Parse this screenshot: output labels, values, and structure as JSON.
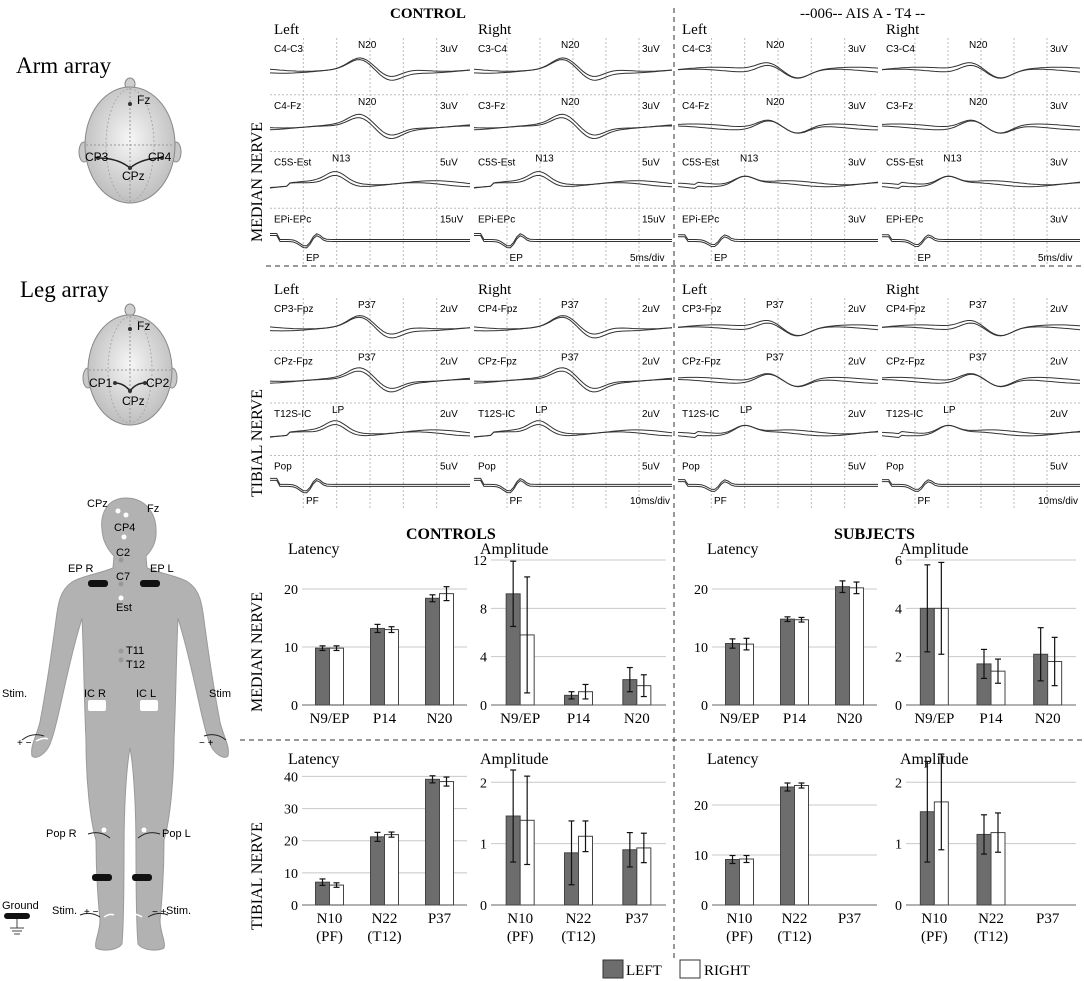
{
  "arrays": {
    "arm_title": "Arm array",
    "leg_title": "Leg array"
  },
  "heads": {
    "arm": {
      "fz": "Fz",
      "left": "CP3",
      "right": "CP4",
      "center": "CPz"
    },
    "leg": {
      "fz": "Fz",
      "left": "CP1",
      "right": "CP2",
      "center": "CPz"
    }
  },
  "body": {
    "labels": [
      "CPz",
      "Fz",
      "CP4",
      "C2",
      "EP R",
      "C7",
      "EP L",
      "Est",
      "T11",
      "T12",
      "IC R",
      "IC L",
      "Stim.",
      "Stim",
      "Pop R",
      "Pop L",
      "Ground",
      "Stim.",
      "Stim."
    ]
  },
  "waves": {
    "headers": {
      "control": "CONTROL",
      "subject": "--006-- AIS A - T4 --"
    },
    "median_label": "MEDIAN NERVE",
    "tibial_label": "TIBIAL NERVE",
    "left": "Left",
    "right": "Right",
    "median": {
      "channels": [
        {
          "left": "C4-C3",
          "right": "C3-C4",
          "peak": "N20"
        },
        {
          "left": "C4-Fz",
          "right": "C3-Fz",
          "peak": "N20"
        },
        {
          "left": "C5S-Est",
          "right": "C5S-Est",
          "peak": "N13"
        },
        {
          "left": "EPi-EPc",
          "right": "EPi-EPc",
          "peak": "EP"
        }
      ],
      "scales_control": [
        "3uV",
        "3uV",
        "5uV",
        "15uV"
      ],
      "scales_subject": [
        "3uV",
        "3uV",
        "3uV",
        "3uV"
      ],
      "timebase": "5ms/div"
    },
    "tibial": {
      "channels": [
        {
          "left": "CP3-Fpz",
          "right": "CP4-Fpz",
          "peak": "P37"
        },
        {
          "left": "CPz-Fpz",
          "right": "CPz-Fpz",
          "peak": "P37"
        },
        {
          "left": "T12S-IC",
          "right": "T12S-IC",
          "peak": "LP"
        },
        {
          "left": "Pop",
          "right": "Pop",
          "peak": "PF"
        }
      ],
      "scales_control": [
        "2uV",
        "2uV",
        "2uV",
        "5uV"
      ],
      "scales_subject": [
        "2uV",
        "2uV",
        "2uV",
        "5uV"
      ],
      "timebase": "10ms/div"
    }
  },
  "bars": {
    "headers": {
      "controls": "CONTROLS",
      "subjects": "SUBJECTS"
    },
    "median_label": "MEDIAN NERVE",
    "tibial_label": "TIBIAL NERVE",
    "legend": {
      "left": "LEFT",
      "right": "RIGHT"
    },
    "colors": {
      "left": "#6d6d6d",
      "right": "#ffffff"
    }
  },
  "chart_data": [
    {
      "type": "bar",
      "title": "Latency",
      "group": "CONTROLS",
      "nerve": "MEDIAN NERVE",
      "categories": [
        "N9/EP",
        "P14",
        "N20"
      ],
      "ylim": [
        0,
        25
      ],
      "yticks": [
        0,
        10,
        20
      ],
      "series": [
        {
          "name": "LEFT",
          "values": [
            9.8,
            13.2,
            18.4
          ],
          "errors": [
            0.4,
            0.7,
            0.6
          ]
        },
        {
          "name": "RIGHT",
          "values": [
            9.8,
            13.0,
            19.2
          ],
          "errors": [
            0.4,
            0.5,
            1.2
          ]
        }
      ]
    },
    {
      "type": "bar",
      "title": "Amplitude",
      "group": "CONTROLS",
      "nerve": "MEDIAN NERVE",
      "categories": [
        "N9/EP",
        "P14",
        "N20"
      ],
      "ylim": [
        0,
        12
      ],
      "yticks": [
        0,
        4,
        8,
        12
      ],
      "series": [
        {
          "name": "LEFT",
          "values": [
            9.2,
            0.8,
            2.1
          ],
          "errors": [
            2.7,
            0.3,
            1.0
          ]
        },
        {
          "name": "RIGHT",
          "values": [
            5.8,
            1.1,
            1.6
          ],
          "errors": [
            4.8,
            0.6,
            0.9
          ]
        }
      ]
    },
    {
      "type": "bar",
      "title": "Latency",
      "group": "SUBJECTS",
      "nerve": "MEDIAN NERVE",
      "categories": [
        "N9/EP",
        "P14",
        "N20"
      ],
      "ylim": [
        0,
        25
      ],
      "yticks": [
        0,
        10,
        20
      ],
      "series": [
        {
          "name": "LEFT",
          "values": [
            10.6,
            14.8,
            20.4
          ],
          "errors": [
            0.8,
            0.4,
            1.0
          ]
        },
        {
          "name": "RIGHT",
          "values": [
            10.5,
            14.7,
            20.2
          ],
          "errors": [
            1.0,
            0.4,
            1.0
          ]
        }
      ]
    },
    {
      "type": "bar",
      "title": "Amplitude",
      "group": "SUBJECTS",
      "nerve": "MEDIAN NERVE",
      "categories": [
        "N9/EP",
        "P14",
        "N20"
      ],
      "ylim": [
        0,
        6
      ],
      "yticks": [
        0,
        2,
        4,
        6
      ],
      "series": [
        {
          "name": "LEFT",
          "values": [
            4.0,
            1.7,
            2.1
          ],
          "errors": [
            1.8,
            0.6,
            1.1
          ]
        },
        {
          "name": "RIGHT",
          "values": [
            4.0,
            1.4,
            1.8
          ],
          "errors": [
            1.9,
            0.5,
            1.0
          ]
        }
      ]
    },
    {
      "type": "bar",
      "title": "Latency",
      "group": "CONTROLS",
      "nerve": "TIBIAL NERVE",
      "categories": [
        "N10\n(PF)",
        "N22\n(T12)",
        "P37"
      ],
      "ylim": [
        0,
        42
      ],
      "yticks": [
        0,
        10,
        20,
        30,
        40
      ],
      "series": [
        {
          "name": "LEFT",
          "values": [
            7.1,
            21.2,
            39.1
          ],
          "errors": [
            1.0,
            1.4,
            1.1
          ]
        },
        {
          "name": "RIGHT",
          "values": [
            6.2,
            21.9,
            38.4
          ],
          "errors": [
            0.7,
            0.8,
            1.4
          ]
        }
      ]
    },
    {
      "type": "bar",
      "title": "Amplitude",
      "group": "CONTROLS",
      "nerve": "TIBIAL NERVE",
      "categories": [
        "N10\n(PF)",
        "N22\n(T12)",
        "P37"
      ],
      "ylim": [
        0,
        2.2
      ],
      "yticks": [
        0,
        1,
        2
      ],
      "series": [
        {
          "name": "LEFT",
          "values": [
            1.45,
            0.85,
            0.9
          ],
          "errors": [
            0.75,
            0.52,
            0.28
          ]
        },
        {
          "name": "RIGHT",
          "values": [
            1.38,
            1.12,
            0.93
          ],
          "errors": [
            0.72,
            0.25,
            0.24
          ]
        }
      ]
    },
    {
      "type": "bar",
      "title": "Latency",
      "group": "SUBJECTS",
      "nerve": "TIBIAL NERVE",
      "categories": [
        "N10\n(PF)",
        "N22\n(T12)",
        "P37"
      ],
      "ylim": [
        0,
        27
      ],
      "yticks": [
        0,
        10,
        20
      ],
      "series": [
        {
          "name": "LEFT",
          "values": [
            9.1,
            23.6,
            null
          ],
          "errors": [
            0.8,
            0.8,
            null
          ]
        },
        {
          "name": "RIGHT",
          "values": [
            9.2,
            23.9,
            null
          ],
          "errors": [
            0.7,
            0.5,
            null
          ]
        }
      ]
    },
    {
      "type": "bar",
      "title": "Amplitude",
      "group": "SUBJECTS",
      "nerve": "TIBIAL NERVE",
      "categories": [
        "N10\n(PF)",
        "N22\n(T12)",
        "P37"
      ],
      "ylim": [
        0,
        2.2
      ],
      "yticks": [
        0,
        1,
        2
      ],
      "series": [
        {
          "name": "LEFT",
          "values": [
            1.52,
            1.15,
            null
          ],
          "errors": [
            0.82,
            0.32,
            null
          ]
        },
        {
          "name": "RIGHT",
          "values": [
            1.68,
            1.18,
            null
          ],
          "errors": [
            0.78,
            0.32,
            null
          ]
        }
      ]
    }
  ]
}
